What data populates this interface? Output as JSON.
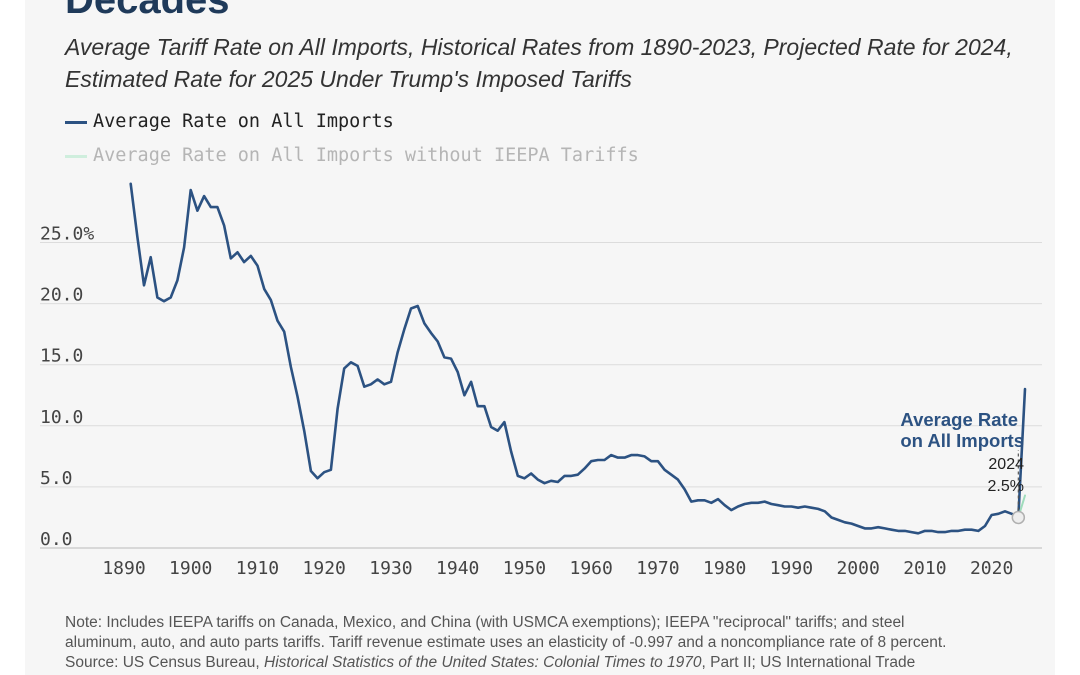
{
  "title": "Decades",
  "subtitle": "Average Tariff Rate on All Imports, Historical Rates from 1890-2023, Projected Rate for 2024, Estimated Rate for 2025 Under Trump's Imposed Tariffs",
  "legend": {
    "series1": "Average Rate on All Imports",
    "series2": "Average Rate on All Imports without IEEPA Tariffs"
  },
  "annotation": {
    "label_line1": "Average Rate",
    "label_line2": "on All Imports",
    "year": "2024",
    "value": "2.5%"
  },
  "note": {
    "line1": "Note: Includes IEEPA tariffs on Canada, Mexico, and China (with USMCA exemptions); IEEPA \"reciprocal\" tariffs; and steel",
    "line2": "aluminum, auto, and auto parts tariffs. Tariff revenue estimate uses an elasticity of -0.997 and a noncompliance rate of 8 percent.",
    "line3_prefix": "Source: US Census Bureau, ",
    "line3_italic": "Historical Statistics of the United States: Colonial Times to 1970",
    "line3_suffix": ", Part II; US International Trade"
  },
  "colors": {
    "series1": "#2c5282",
    "series2": "#9fdcbc",
    "title": "#1f3a5a",
    "grid": "#dcdcdc"
  },
  "chart_data": {
    "type": "line",
    "xlim": [
      1890,
      2025
    ],
    "ylim": [
      0,
      30
    ],
    "yticks": [
      {
        "value": 0,
        "label": "0.0"
      },
      {
        "value": 5,
        "label": "5.0"
      },
      {
        "value": 10,
        "label": "10.0"
      },
      {
        "value": 15,
        "label": "15.0"
      },
      {
        "value": 20,
        "label": "20.0"
      },
      {
        "value": 25,
        "label": "25.0%"
      }
    ],
    "xticks": [
      1890,
      1900,
      1910,
      1920,
      1930,
      1940,
      1950,
      1960,
      1970,
      1980,
      1990,
      2000,
      2010,
      2020
    ],
    "series": [
      {
        "name": "Average Rate on All Imports",
        "x": [
          1891,
          1892,
          1893,
          1894,
          1895,
          1896,
          1897,
          1898,
          1899,
          1900,
          1901,
          1902,
          1903,
          1904,
          1905,
          1906,
          1907,
          1908,
          1909,
          1910,
          1911,
          1912,
          1913,
          1914,
          1915,
          1916,
          1917,
          1918,
          1919,
          1920,
          1921,
          1922,
          1923,
          1924,
          1925,
          1926,
          1927,
          1928,
          1929,
          1930,
          1931,
          1932,
          1933,
          1934,
          1935,
          1936,
          1937,
          1938,
          1939,
          1940,
          1941,
          1942,
          1943,
          1944,
          1945,
          1946,
          1947,
          1948,
          1949,
          1950,
          1951,
          1952,
          1953,
          1954,
          1955,
          1956,
          1957,
          1958,
          1959,
          1960,
          1961,
          1962,
          1963,
          1964,
          1965,
          1966,
          1967,
          1968,
          1969,
          1970,
          1971,
          1972,
          1973,
          1974,
          1975,
          1976,
          1977,
          1978,
          1979,
          1980,
          1981,
          1982,
          1983,
          1984,
          1985,
          1986,
          1987,
          1988,
          1989,
          1990,
          1991,
          1992,
          1993,
          1994,
          1995,
          1996,
          1997,
          1998,
          1999,
          2000,
          2001,
          2002,
          2003,
          2004,
          2005,
          2006,
          2007,
          2008,
          2009,
          2010,
          2011,
          2012,
          2013,
          2014,
          2015,
          2016,
          2017,
          2018,
          2019,
          2020,
          2021,
          2022,
          2023,
          2024,
          2025
        ],
        "y": [
          29.8,
          25.5,
          21.5,
          23.8,
          20.5,
          20.2,
          20.5,
          21.9,
          24.6,
          29.3,
          27.6,
          28.8,
          27.9,
          27.9,
          26.4,
          23.7,
          24.2,
          23.4,
          23.9,
          23.1,
          21.2,
          20.3,
          18.6,
          17.7,
          14.8,
          12.4,
          9.6,
          6.3,
          5.7,
          6.2,
          6.4,
          11.4,
          14.7,
          15.2,
          14.9,
          13.2,
          13.4,
          13.8,
          13.4,
          13.6,
          16.0,
          17.9,
          19.6,
          19.8,
          18.4,
          17.6,
          16.9,
          15.6,
          15.5,
          14.4,
          12.5,
          13.6,
          11.6,
          11.6,
          9.9,
          9.6,
          10.3,
          7.9,
          5.9,
          5.7,
          6.1,
          5.6,
          5.3,
          5.5,
          5.4,
          5.9,
          5.9,
          6.0,
          6.5,
          7.1,
          7.2,
          7.2,
          7.6,
          7.4,
          7.4,
          7.6,
          7.6,
          7.5,
          7.1,
          7.1,
          6.4,
          6.0,
          5.6,
          4.8,
          3.8,
          3.9,
          3.9,
          3.7,
          4.0,
          3.5,
          3.1,
          3.4,
          3.6,
          3.7,
          3.7,
          3.8,
          3.6,
          3.5,
          3.4,
          3.4,
          3.3,
          3.4,
          3.3,
          3.2,
          3.0,
          2.5,
          2.3,
          2.1,
          2.0,
          1.8,
          1.6,
          1.6,
          1.7,
          1.6,
          1.5,
          1.4,
          1.4,
          1.3,
          1.2,
          1.4,
          1.4,
          1.3,
          1.3,
          1.4,
          1.4,
          1.5,
          1.5,
          1.4,
          1.8,
          2.7,
          2.8,
          3.0,
          2.8,
          2.5,
          13.0
        ]
      },
      {
        "name": "Average Rate on All Imports without IEEPA Tariffs",
        "x": [
          2024,
          2025
        ],
        "y": [
          2.5,
          4.3
        ]
      }
    ]
  }
}
